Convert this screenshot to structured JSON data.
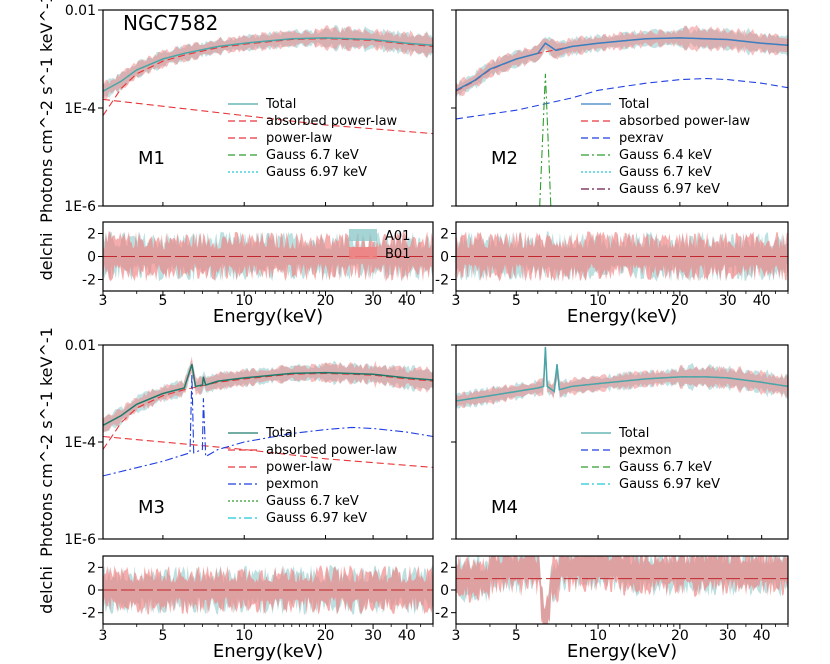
{
  "chart_data": {
    "type": "line",
    "title": "NGC7582",
    "xlabel": "Energy(keV)",
    "ylabel_spectrum": "Photons cm^-2 s^-1 keV^-1",
    "ylabel_residual": "delchi",
    "xlim": [
      3,
      50
    ],
    "xscale": "log",
    "ylim_spectrum": [
      1e-06,
      0.01
    ],
    "yscale_spectrum": "log",
    "ylim_residual": [
      -3,
      3
    ],
    "x_ticks": [
      {
        "value": 3,
        "label": "3"
      },
      {
        "value": 5,
        "label": "5"
      },
      {
        "value": 10,
        "label": "10"
      },
      {
        "value": 20,
        "label": "20"
      },
      {
        "value": 30,
        "label": "30"
      },
      {
        "value": 40,
        "label": "40"
      }
    ],
    "y_ticks_spectrum": [
      {
        "value": 0.01,
        "label": "0.01"
      },
      {
        "value": 0.0001,
        "label": "1E-4"
      },
      {
        "value": 1e-06,
        "label": "1E-6"
      }
    ],
    "y_ticks_residual": [
      {
        "value": 2,
        "label": "2"
      },
      {
        "value": 0,
        "label": "0"
      },
      {
        "value": -2,
        "label": "-2"
      }
    ],
    "data_legend": [
      {
        "label": "A01",
        "color": "#8fc9cb"
      },
      {
        "label": "B01",
        "color": "#f07f7f"
      }
    ],
    "panels": [
      {
        "model": "M1",
        "show_title": true,
        "legend": [
          {
            "label": "Total",
            "color": "#4aa6a6",
            "dash": "solid"
          },
          {
            "label": "absorbed power-law",
            "color": "#e8363a",
            "dash": "dashed"
          },
          {
            "label": "power-law",
            "color": "#e8363a",
            "dash": "dashed"
          },
          {
            "label": "Gauss 6.7 keV",
            "color": "#2e9e2e",
            "dash": "dashed"
          },
          {
            "label": "Gauss 6.97 keV",
            "color": "#22c7d4",
            "dash": "dotted"
          }
        ],
        "series": [
          {
            "name": "absorbed power-law",
            "x": [
              3,
              3.5,
              4,
              5,
              6,
              8,
              10,
              15,
              20,
              30,
              40,
              50
            ],
            "y": [
              7e-05,
              0.00025,
              0.0005,
              0.0009,
              0.0012,
              0.0017,
              0.002,
              0.0025,
              0.0026,
              0.0024,
              0.002,
              0.0018
            ]
          },
          {
            "name": "power-law",
            "x": [
              3,
              10,
              20,
              50
            ],
            "y": [
              0.00015,
              7e-05,
              4.5e-05,
              3e-05
            ]
          },
          {
            "name": "Total",
            "x": [
              3,
              3.5,
              4,
              5,
              6,
              8,
              10,
              15,
              20,
              30,
              40,
              50
            ],
            "y": [
              0.00022,
              0.00035,
              0.0006,
              0.001,
              0.0013,
              0.0018,
              0.0021,
              0.0026,
              0.0027,
              0.0025,
              0.0021,
              0.0019
            ]
          }
        ],
        "residual_offset": 0
      },
      {
        "model": "M2",
        "show_title": false,
        "legend": [
          {
            "label": "Total",
            "color": "#3a7fc0",
            "dash": "solid"
          },
          {
            "label": "absorbed power-law",
            "color": "#e8363a",
            "dash": "dashed"
          },
          {
            "label": "pexrav",
            "color": "#1f3fe0",
            "dash": "dashed"
          },
          {
            "label": "Gauss 6.4 keV",
            "color": "#2e9e2e",
            "dash": "dashdot"
          },
          {
            "label": "Gauss 6.7 keV",
            "color": "#22c7d4",
            "dash": "dotted"
          },
          {
            "label": "Gauss 6.97 keV",
            "color": "#6a1a4a",
            "dash": "dashdot"
          }
        ],
        "series": [
          {
            "name": "absorbed power-law",
            "x": [
              3,
              3.5,
              4,
              5,
              6,
              8,
              10,
              15,
              20,
              30,
              40,
              50
            ],
            "y": [
              0.00022,
              0.00035,
              0.0006,
              0.001,
              0.0013,
              0.0018,
              0.0021,
              0.0026,
              0.0027,
              0.0025,
              0.0021,
              0.0019
            ]
          },
          {
            "name": "pexrav",
            "x": [
              3,
              5,
              8,
              10,
              15,
              20,
              25,
              30,
              40,
              50
            ],
            "y": [
              6e-05,
              9e-05,
              0.00016,
              0.00023,
              0.00032,
              0.00038,
              0.0004,
              0.00038,
              0.00032,
              0.00026
            ]
          },
          {
            "name": "Gauss 6.4 keV",
            "x": [
              6.1,
              6.4,
              6.7
            ],
            "y": [
              1e-06,
              0.0005,
              1e-06
            ]
          },
          {
            "name": "Total",
            "x": [
              3,
              3.5,
              4,
              5,
              6,
              6.4,
              7,
              8,
              10,
              15,
              20,
              30,
              40,
              50
            ],
            "y": [
              0.00023,
              0.00036,
              0.00062,
              0.001,
              0.0013,
              0.0021,
              0.0015,
              0.0018,
              0.0021,
              0.0026,
              0.0027,
              0.0025,
              0.0021,
              0.0019
            ]
          }
        ],
        "residual_offset": 0
      },
      {
        "model": "M3",
        "show_title": false,
        "legend": [
          {
            "label": "Total",
            "color": "#1e7a6a",
            "dash": "solid"
          },
          {
            "label": "absorbed power-law",
            "color": "#e8363a",
            "dash": "dashed"
          },
          {
            "label": "power-law",
            "color": "#e8363a",
            "dash": "dashed"
          },
          {
            "label": "pexmon",
            "color": "#1f3fe0",
            "dash": "dashdot"
          },
          {
            "label": "Gauss 6.7 keV",
            "color": "#2e9e2e",
            "dash": "dotted"
          },
          {
            "label": "Gauss 6.97 keV",
            "color": "#22c7d4",
            "dash": "dashdot"
          }
        ],
        "series": [
          {
            "name": "absorbed power-law",
            "x": [
              3,
              3.5,
              4,
              5,
              6,
              8,
              10,
              15,
              20,
              30,
              40,
              50
            ],
            "y": [
              7e-05,
              0.00025,
              0.0005,
              0.0009,
              0.0012,
              0.0017,
              0.002,
              0.0025,
              0.0026,
              0.0024,
              0.002,
              0.0018
            ]
          },
          {
            "name": "power-law",
            "x": [
              3,
              10,
              20,
              50
            ],
            "y": [
              0.00013,
              7e-05,
              4.5e-05,
              3e-05
            ]
          },
          {
            "name": "pexmon",
            "x": [
              3,
              5,
              6.3,
              6.4,
              6.5,
              7,
              7.06,
              7.2,
              8,
              10,
              15,
              20,
              25,
              30,
              40,
              50
            ],
            "y": [
              2e-05,
              4e-05,
              6e-05,
              0.0025,
              6e-05,
              7e-05,
              0.0008,
              5e-05,
              7e-05,
              0.0001,
              0.00015,
              0.00018,
              0.0002,
              0.00019,
              0.00016,
              0.00013
            ]
          },
          {
            "name": "Total",
            "x": [
              3,
              3.5,
              4,
              5,
              6,
              6.4,
              6.6,
              7,
              7.06,
              7.2,
              8,
              10,
              15,
              20,
              30,
              40,
              50
            ],
            "y": [
              0.00022,
              0.00035,
              0.0006,
              0.001,
              0.0013,
              0.004,
              0.0014,
              0.0015,
              0.0022,
              0.0015,
              0.0018,
              0.0021,
              0.0026,
              0.0027,
              0.0025,
              0.0021,
              0.0019
            ]
          }
        ],
        "residual_offset": 0
      },
      {
        "model": "M4",
        "show_title": false,
        "legend": [
          {
            "label": "Total",
            "color": "#4aa6a6",
            "dash": "solid"
          },
          {
            "label": "pexmon",
            "color": "#1f3fe0",
            "dash": "dashed"
          },
          {
            "label": "Gauss 6.7 keV",
            "color": "#2e9e2e",
            "dash": "dashed"
          },
          {
            "label": "Gauss 6.97 keV",
            "color": "#22c7d4",
            "dash": "dashdot"
          }
        ],
        "series": [
          {
            "name": "pexmon",
            "x": [
              3,
              4,
              5,
              6,
              6.3,
              6.4,
              6.5,
              6.9,
              7.06,
              7.2,
              8,
              10,
              15,
              20,
              25,
              30,
              40,
              50
            ],
            "y": [
              0.0007,
              0.0009,
              0.0011,
              0.0013,
              0.0014,
              0.009,
              0.0014,
              0.0011,
              0.004,
              0.0012,
              0.0014,
              0.0016,
              0.002,
              0.0022,
              0.0022,
              0.0021,
              0.0017,
              0.0014
            ]
          },
          {
            "name": "Total",
            "x": [
              3,
              4,
              5,
              6,
              6.3,
              6.4,
              6.5,
              6.9,
              7.06,
              7.2,
              8,
              10,
              15,
              20,
              25,
              30,
              40,
              50
            ],
            "y": [
              0.0007,
              0.0009,
              0.0011,
              0.0013,
              0.0014,
              0.009,
              0.0014,
              0.0011,
              0.004,
              0.0012,
              0.0014,
              0.0016,
              0.002,
              0.0022,
              0.0022,
              0.0021,
              0.0017,
              0.0014
            ]
          }
        ],
        "residual_offset": 1
      }
    ],
    "spectrum_noise": {
      "A01": {
        "x": [
          3,
          4,
          5,
          6,
          8,
          10,
          20,
          30,
          50
        ],
        "y": [
          0.0002,
          0.0006,
          0.001,
          0.0013,
          0.0018,
          0.0021,
          0.0027,
          0.0025,
          0.0019
        ]
      },
      "B01": {
        "x": [
          3,
          4,
          5,
          6,
          8,
          10,
          20,
          30,
          50
        ],
        "y": [
          0.0002,
          0.0006,
          0.001,
          0.0013,
          0.0018,
          0.0021,
          0.0027,
          0.0025,
          0.0019
        ]
      }
    }
  }
}
